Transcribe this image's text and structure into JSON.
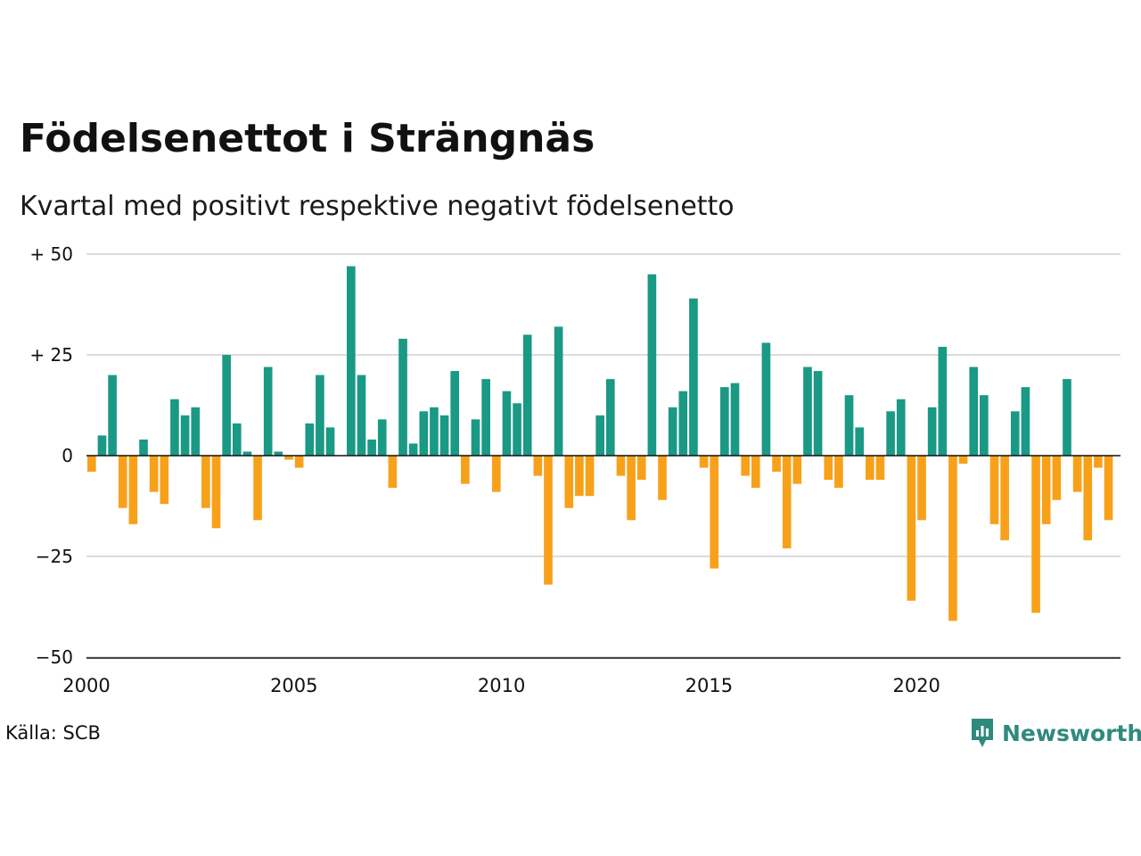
{
  "title": "Födelsenettot i Strängnäs",
  "subtitle": "Kvartal med positivt respektive negativt födelsenetto",
  "source": "Källa: SCB",
  "brand": "Newsworthy",
  "colors": {
    "positive": "#1a9985",
    "negative": "#f7a11a",
    "grid": "#dcdcdc",
    "brand": "#2f8a7e"
  },
  "chart_data": {
    "type": "bar",
    "ylim": [
      -50,
      50
    ],
    "y_ticks": [
      50,
      25,
      0,
      -25,
      -50
    ],
    "y_tick_labels": [
      "+ 50",
      "+ 25",
      "0",
      "−25",
      "−50"
    ],
    "x_tick_labels": [
      "2000",
      "2005",
      "2010",
      "2015",
      "2020"
    ],
    "x_tick_years": [
      2000,
      2005,
      2010,
      2015,
      2020
    ],
    "start_year": 2000,
    "grid": true,
    "values": [
      -4,
      5,
      20,
      -13,
      -17,
      4,
      -9,
      -12,
      14,
      10,
      12,
      -13,
      -18,
      25,
      8,
      1,
      -16,
      22,
      1,
      -1,
      -3,
      8,
      20,
      7,
      0,
      47,
      20,
      4,
      9,
      -8,
      29,
      3,
      11,
      12,
      10,
      21,
      -7,
      9,
      19,
      -9,
      16,
      13,
      30,
      -5,
      -32,
      32,
      -13,
      -10,
      -10,
      10,
      19,
      -5,
      -16,
      -6,
      45,
      -11,
      12,
      16,
      39,
      -3,
      -28,
      17,
      18,
      -5,
      -8,
      28,
      -4,
      -23,
      -7,
      22,
      21,
      -6,
      -8,
      15,
      7,
      -6,
      -6,
      11,
      14,
      -36,
      -16,
      12,
      27,
      -41,
      -2,
      22,
      15,
      -17,
      -21,
      11,
      17,
      -39,
      -17,
      -11,
      19,
      -9,
      -21,
      -3,
      -16
    ]
  }
}
